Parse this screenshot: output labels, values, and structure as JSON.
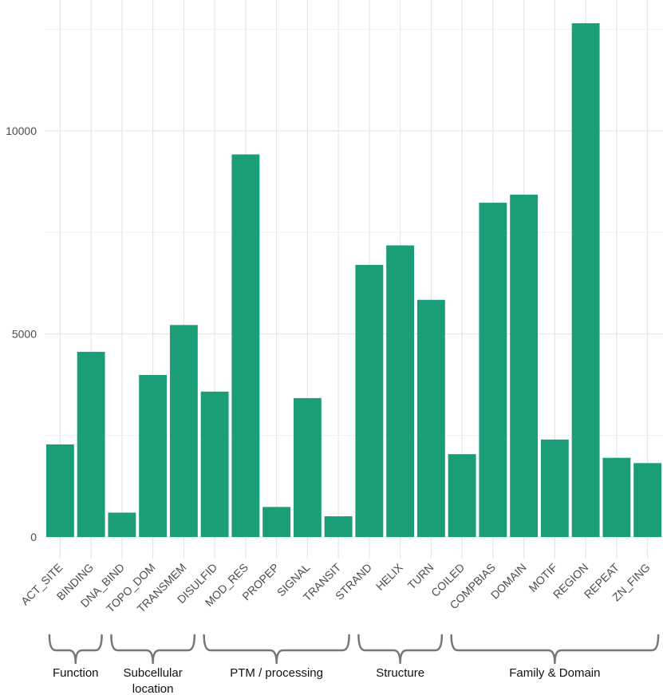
{
  "chart_data": {
    "type": "bar",
    "title": "",
    "xlabel": "",
    "ylabel": "",
    "ylim": [
      0,
      12700
    ],
    "y_ticks": [
      0,
      5000,
      10000
    ],
    "y_tick_labels": [
      "0",
      "5000",
      "10000"
    ],
    "color": "#1b9e77",
    "grid": true,
    "categories": [
      "ACT_SITE",
      "BINDING",
      "DNA_BIND",
      "TOPO_DOM",
      "TRANSMEM",
      "DISULFID",
      "MOD_RES",
      "PROPEP",
      "SIGNAL",
      "TRANSIT",
      "STRAND",
      "HELIX",
      "TURN",
      "COILED",
      "COMPBIAS",
      "DOMAIN",
      "MOTIF",
      "REGION",
      "REPEAT",
      "ZN_FING"
    ],
    "values": [
      2280,
      4560,
      600,
      3990,
      5220,
      3580,
      9420,
      740,
      3420,
      510,
      6700,
      7180,
      5840,
      2040,
      8230,
      8430,
      2400,
      12650,
      1950,
      1820
    ],
    "groups": [
      {
        "label": "Function",
        "start": 0,
        "end": 1
      },
      {
        "label": "Subcellular location",
        "start": 2,
        "end": 4
      },
      {
        "label": "PTM / processing",
        "start": 5,
        "end": 9
      },
      {
        "label": "Structure",
        "start": 10,
        "end": 12
      },
      {
        "label": "Family & Domain",
        "start": 13,
        "end": 19
      }
    ]
  }
}
